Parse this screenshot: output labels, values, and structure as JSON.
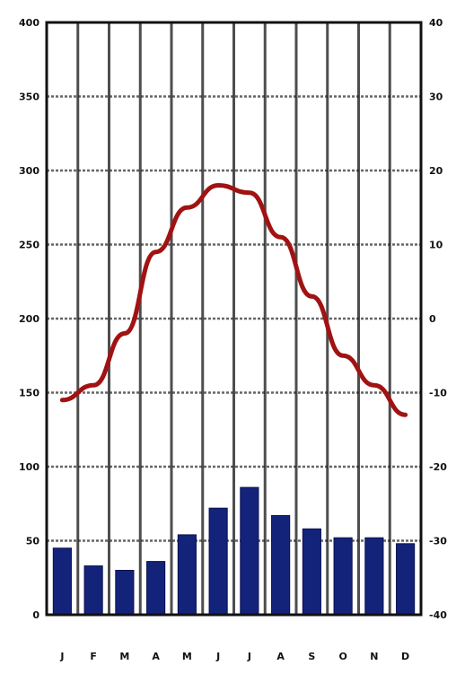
{
  "chart_data": {
    "type": "bar",
    "categories": [
      "J",
      "F",
      "M",
      "A",
      "M",
      "J",
      "J",
      "A",
      "S",
      "O",
      "N",
      "D"
    ],
    "series": [
      {
        "type": "bar",
        "axis": "left",
        "color": "#14237a",
        "values": [
          45,
          33,
          30,
          36,
          54,
          72,
          86,
          67,
          58,
          52,
          52,
          48
        ]
      },
      {
        "type": "line",
        "axis": "right",
        "color": "#a11212",
        "values": [
          -11,
          -9,
          -2,
          9,
          15,
          18,
          17,
          11,
          3,
          -5,
          -9,
          -13
        ]
      }
    ],
    "left_axis": {
      "ylim": [
        0,
        400
      ],
      "ticks": [
        "0",
        "50",
        "100",
        "150",
        "200",
        "250",
        "300",
        "350",
        "400"
      ]
    },
    "right_axis": {
      "ylim": [
        -40,
        40
      ],
      "ticks": [
        "-40",
        "-30",
        "-20",
        "-10",
        "0",
        "10",
        "20",
        "30",
        "40"
      ]
    },
    "xlabel": "",
    "ylabel": "",
    "title": "",
    "grid": true
  }
}
